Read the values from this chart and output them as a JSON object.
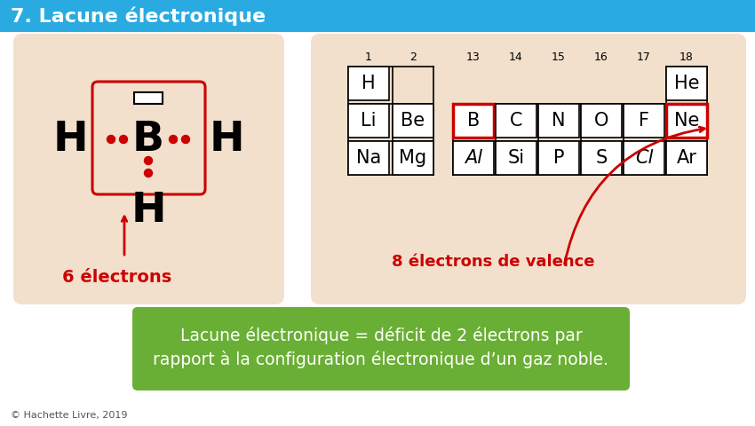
{
  "title": "7. Lacune électronique",
  "title_bg": "#29ABE2",
  "title_color": "white",
  "bg_color": "#FFFFFF",
  "panel_bg": "#F2E0CC",
  "header_bar_color": "#29ABE2",
  "lewis_label": "6 électrons",
  "lewis_label_color": "#CC0000",
  "valence_label": "8 électrons de valence",
  "valence_label_color": "#CC0000",
  "green_box_text1": "Lacune électronique = déficit de 2 électrons par",
  "green_box_text2": "rapport à la configuration électronique d’un gaz noble.",
  "green_box_bg": "#6AAF35",
  "green_box_text_color": "white",
  "copyright": "© Hachette Livre, 2019",
  "periodic_col_numbers": [
    "1",
    "2",
    "13",
    "14",
    "15",
    "16",
    "17",
    "18"
  ],
  "periodic_row1": [
    "H",
    "",
    "",
    "",
    "",
    "",
    "",
    "He"
  ],
  "periodic_row2": [
    "Li",
    "Be",
    "B",
    "C",
    "N",
    "O",
    "F",
    "Ne"
  ],
  "periodic_row3": [
    "Na",
    "Mg",
    "Al",
    "Si",
    "P",
    "S",
    "Cl",
    "Ar"
  ],
  "highlighted_elements": [
    "B",
    "Ne"
  ],
  "highlight_color": "#CC0000",
  "italic_elements": [
    "Al",
    "Cl"
  ]
}
